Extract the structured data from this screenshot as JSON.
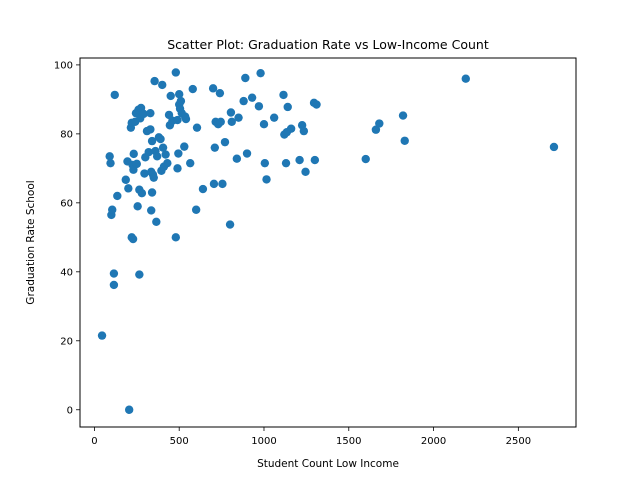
{
  "chart_data": {
    "type": "scatter",
    "title": "Scatter Plot: Graduation Rate vs Low-Income Count",
    "xlabel": "Student Count Low Income",
    "ylabel": "Graduation Rate School",
    "xlim": [
      -85,
      2840
    ],
    "ylim": [
      -5,
      102
    ],
    "xticks": [
      0,
      500,
      1000,
      1500,
      2000,
      2500
    ],
    "yticks": [
      0,
      20,
      40,
      60,
      80,
      100
    ],
    "xtick_labels": [
      "0",
      "500",
      "1000",
      "1500",
      "2000",
      "2500"
    ],
    "ytick_labels": [
      "0",
      "20",
      "40",
      "60",
      "80",
      "100"
    ],
    "grid": false,
    "legend": "none",
    "point_color": "#1f77b4",
    "points": [
      [
        45,
        21.5
      ],
      [
        90,
        73.5
      ],
      [
        95,
        71.5
      ],
      [
        100,
        56.5
      ],
      [
        105,
        58
      ],
      [
        115,
        39.5
      ],
      [
        115,
        36.2
      ],
      [
        120,
        91.3
      ],
      [
        135,
        62
      ],
      [
        185,
        66.7
      ],
      [
        195,
        72
      ],
      [
        200,
        64.2
      ],
      [
        205,
        0
      ],
      [
        215,
        81.8
      ],
      [
        220,
        83.2
      ],
      [
        220,
        50
      ],
      [
        225,
        71
      ],
      [
        228,
        49.5
      ],
      [
        230,
        69.6
      ],
      [
        232,
        74.2
      ],
      [
        240,
        83.5
      ],
      [
        245,
        86
      ],
      [
        250,
        71.3
      ],
      [
        255,
        59
      ],
      [
        260,
        87
      ],
      [
        265,
        39.2
      ],
      [
        265,
        63.8
      ],
      [
        270,
        84.5
      ],
      [
        275,
        87.5
      ],
      [
        280,
        62.8
      ],
      [
        290,
        85.8
      ],
      [
        295,
        68.5
      ],
      [
        300,
        73.2
      ],
      [
        310,
        80.8
      ],
      [
        320,
        74.7
      ],
      [
        330,
        86
      ],
      [
        330,
        81.3
      ],
      [
        335,
        69
      ],
      [
        335,
        57.8
      ],
      [
        340,
        77.9
      ],
      [
        340,
        63
      ],
      [
        345,
        68.2
      ],
      [
        350,
        67.3
      ],
      [
        355,
        95.3
      ],
      [
        360,
        75
      ],
      [
        365,
        54.5
      ],
      [
        370,
        73.5
      ],
      [
        380,
        79
      ],
      [
        390,
        78.5
      ],
      [
        395,
        69.3
      ],
      [
        400,
        94.2
      ],
      [
        405,
        76
      ],
      [
        410,
        70.5
      ],
      [
        420,
        74
      ],
      [
        430,
        71.5
      ],
      [
        440,
        85.5
      ],
      [
        445,
        82.5
      ],
      [
        450,
        91
      ],
      [
        460,
        83.8
      ],
      [
        480,
        97.8
      ],
      [
        480,
        50
      ],
      [
        490,
        70
      ],
      [
        490,
        84
      ],
      [
        495,
        74.3
      ],
      [
        500,
        88.5
      ],
      [
        500,
        91.5
      ],
      [
        505,
        87.3
      ],
      [
        510,
        89.5
      ],
      [
        515,
        86
      ],
      [
        530,
        76.3
      ],
      [
        535,
        85
      ],
      [
        540,
        84.3
      ],
      [
        565,
        71.5
      ],
      [
        580,
        93
      ],
      [
        600,
        58
      ],
      [
        605,
        81.8
      ],
      [
        640,
        64
      ],
      [
        700,
        93.2
      ],
      [
        705,
        65.5
      ],
      [
        710,
        76
      ],
      [
        715,
        83.5
      ],
      [
        730,
        82.8
      ],
      [
        740,
        91.8
      ],
      [
        745,
        83.5
      ],
      [
        755,
        65.5
      ],
      [
        770,
        77.6
      ],
      [
        800,
        53.7
      ],
      [
        805,
        86.2
      ],
      [
        810,
        83.5
      ],
      [
        840,
        72.8
      ],
      [
        850,
        84.7
      ],
      [
        880,
        89.5
      ],
      [
        890,
        96.2
      ],
      [
        900,
        74.3
      ],
      [
        930,
        90.5
      ],
      [
        970,
        88
      ],
      [
        980,
        97.6
      ],
      [
        1000,
        82.8
      ],
      [
        1005,
        71.5
      ],
      [
        1015,
        66.8
      ],
      [
        1060,
        84.7
      ],
      [
        1115,
        91.3
      ],
      [
        1120,
        79.8
      ],
      [
        1130,
        71.5
      ],
      [
        1135,
        80.5
      ],
      [
        1140,
        87.8
      ],
      [
        1160,
        81.5
      ],
      [
        1210,
        72.4
      ],
      [
        1225,
        82.5
      ],
      [
        1235,
        80.8
      ],
      [
        1245,
        69
      ],
      [
        1295,
        89
      ],
      [
        1300,
        72.4
      ],
      [
        1310,
        88.5
      ],
      [
        1600,
        72.7
      ],
      [
        1660,
        81.2
      ],
      [
        1680,
        83
      ],
      [
        1820,
        85.3
      ],
      [
        1830,
        78
      ],
      [
        2190,
        96
      ],
      [
        2710,
        76.2
      ]
    ]
  }
}
